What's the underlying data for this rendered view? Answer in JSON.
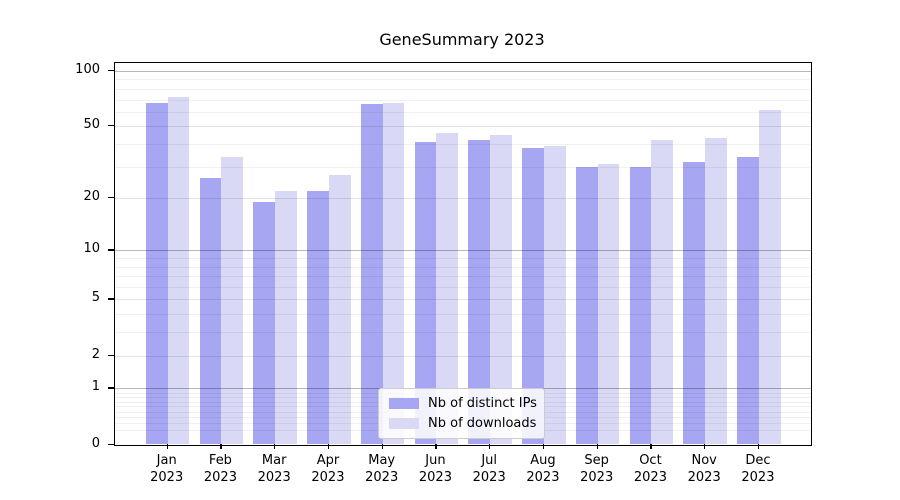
{
  "chart_data": {
    "type": "bar",
    "title": "GeneSummary 2023",
    "categories": [
      "Jan",
      "Feb",
      "Mar",
      "Apr",
      "May",
      "Jun",
      "Jul",
      "Aug",
      "Sep",
      "Oct",
      "Nov",
      "Dec"
    ],
    "year_label": "2023",
    "series": [
      {
        "name": "Nb of distinct IPs",
        "color": "#a6a6f2",
        "values": [
          67,
          26,
          19,
          22,
          66,
          41,
          42,
          38,
          30,
          30,
          32,
          34
        ]
      },
      {
        "name": "Nb of downloads",
        "color": "#d9d9f6",
        "values": [
          72,
          34,
          22,
          27,
          67,
          46,
          45,
          39,
          31,
          42,
          43,
          61
        ]
      }
    ],
    "xlabel": "",
    "ylabel": "",
    "ylim": [
      0,
      110
    ],
    "y_axis": {
      "scale": "log1p",
      "tick_labels": [
        "100",
        "50",
        "20",
        "10",
        "5",
        "2",
        "1",
        "0"
      ],
      "tick_values": [
        100,
        50,
        20,
        10,
        5,
        2,
        1,
        0
      ],
      "decade_gridlines": [
        1,
        10,
        100
      ],
      "medium_gridlines": [
        2,
        5,
        20,
        50
      ],
      "minor_gridlines": [
        0.2,
        0.3,
        0.4,
        0.5,
        0.6,
        0.7,
        0.8,
        0.9,
        3,
        4,
        6,
        7,
        8,
        9,
        30,
        40,
        60,
        70,
        80,
        90
      ]
    },
    "grid": true,
    "legend": {
      "position": "lower center",
      "entries": [
        "Nb of distinct IPs",
        "Nb of downloads"
      ]
    },
    "colors": {
      "bar_dark": "#a6a6f2",
      "bar_light": "#d9d9f6",
      "grid_major": "rgba(0,0,0,0.28)",
      "grid_medium": "rgba(0,0,0,0.10)",
      "grid_minor": "rgba(0,0,0,0.06)",
      "axis": "#000000",
      "background": "#ffffff"
    }
  }
}
